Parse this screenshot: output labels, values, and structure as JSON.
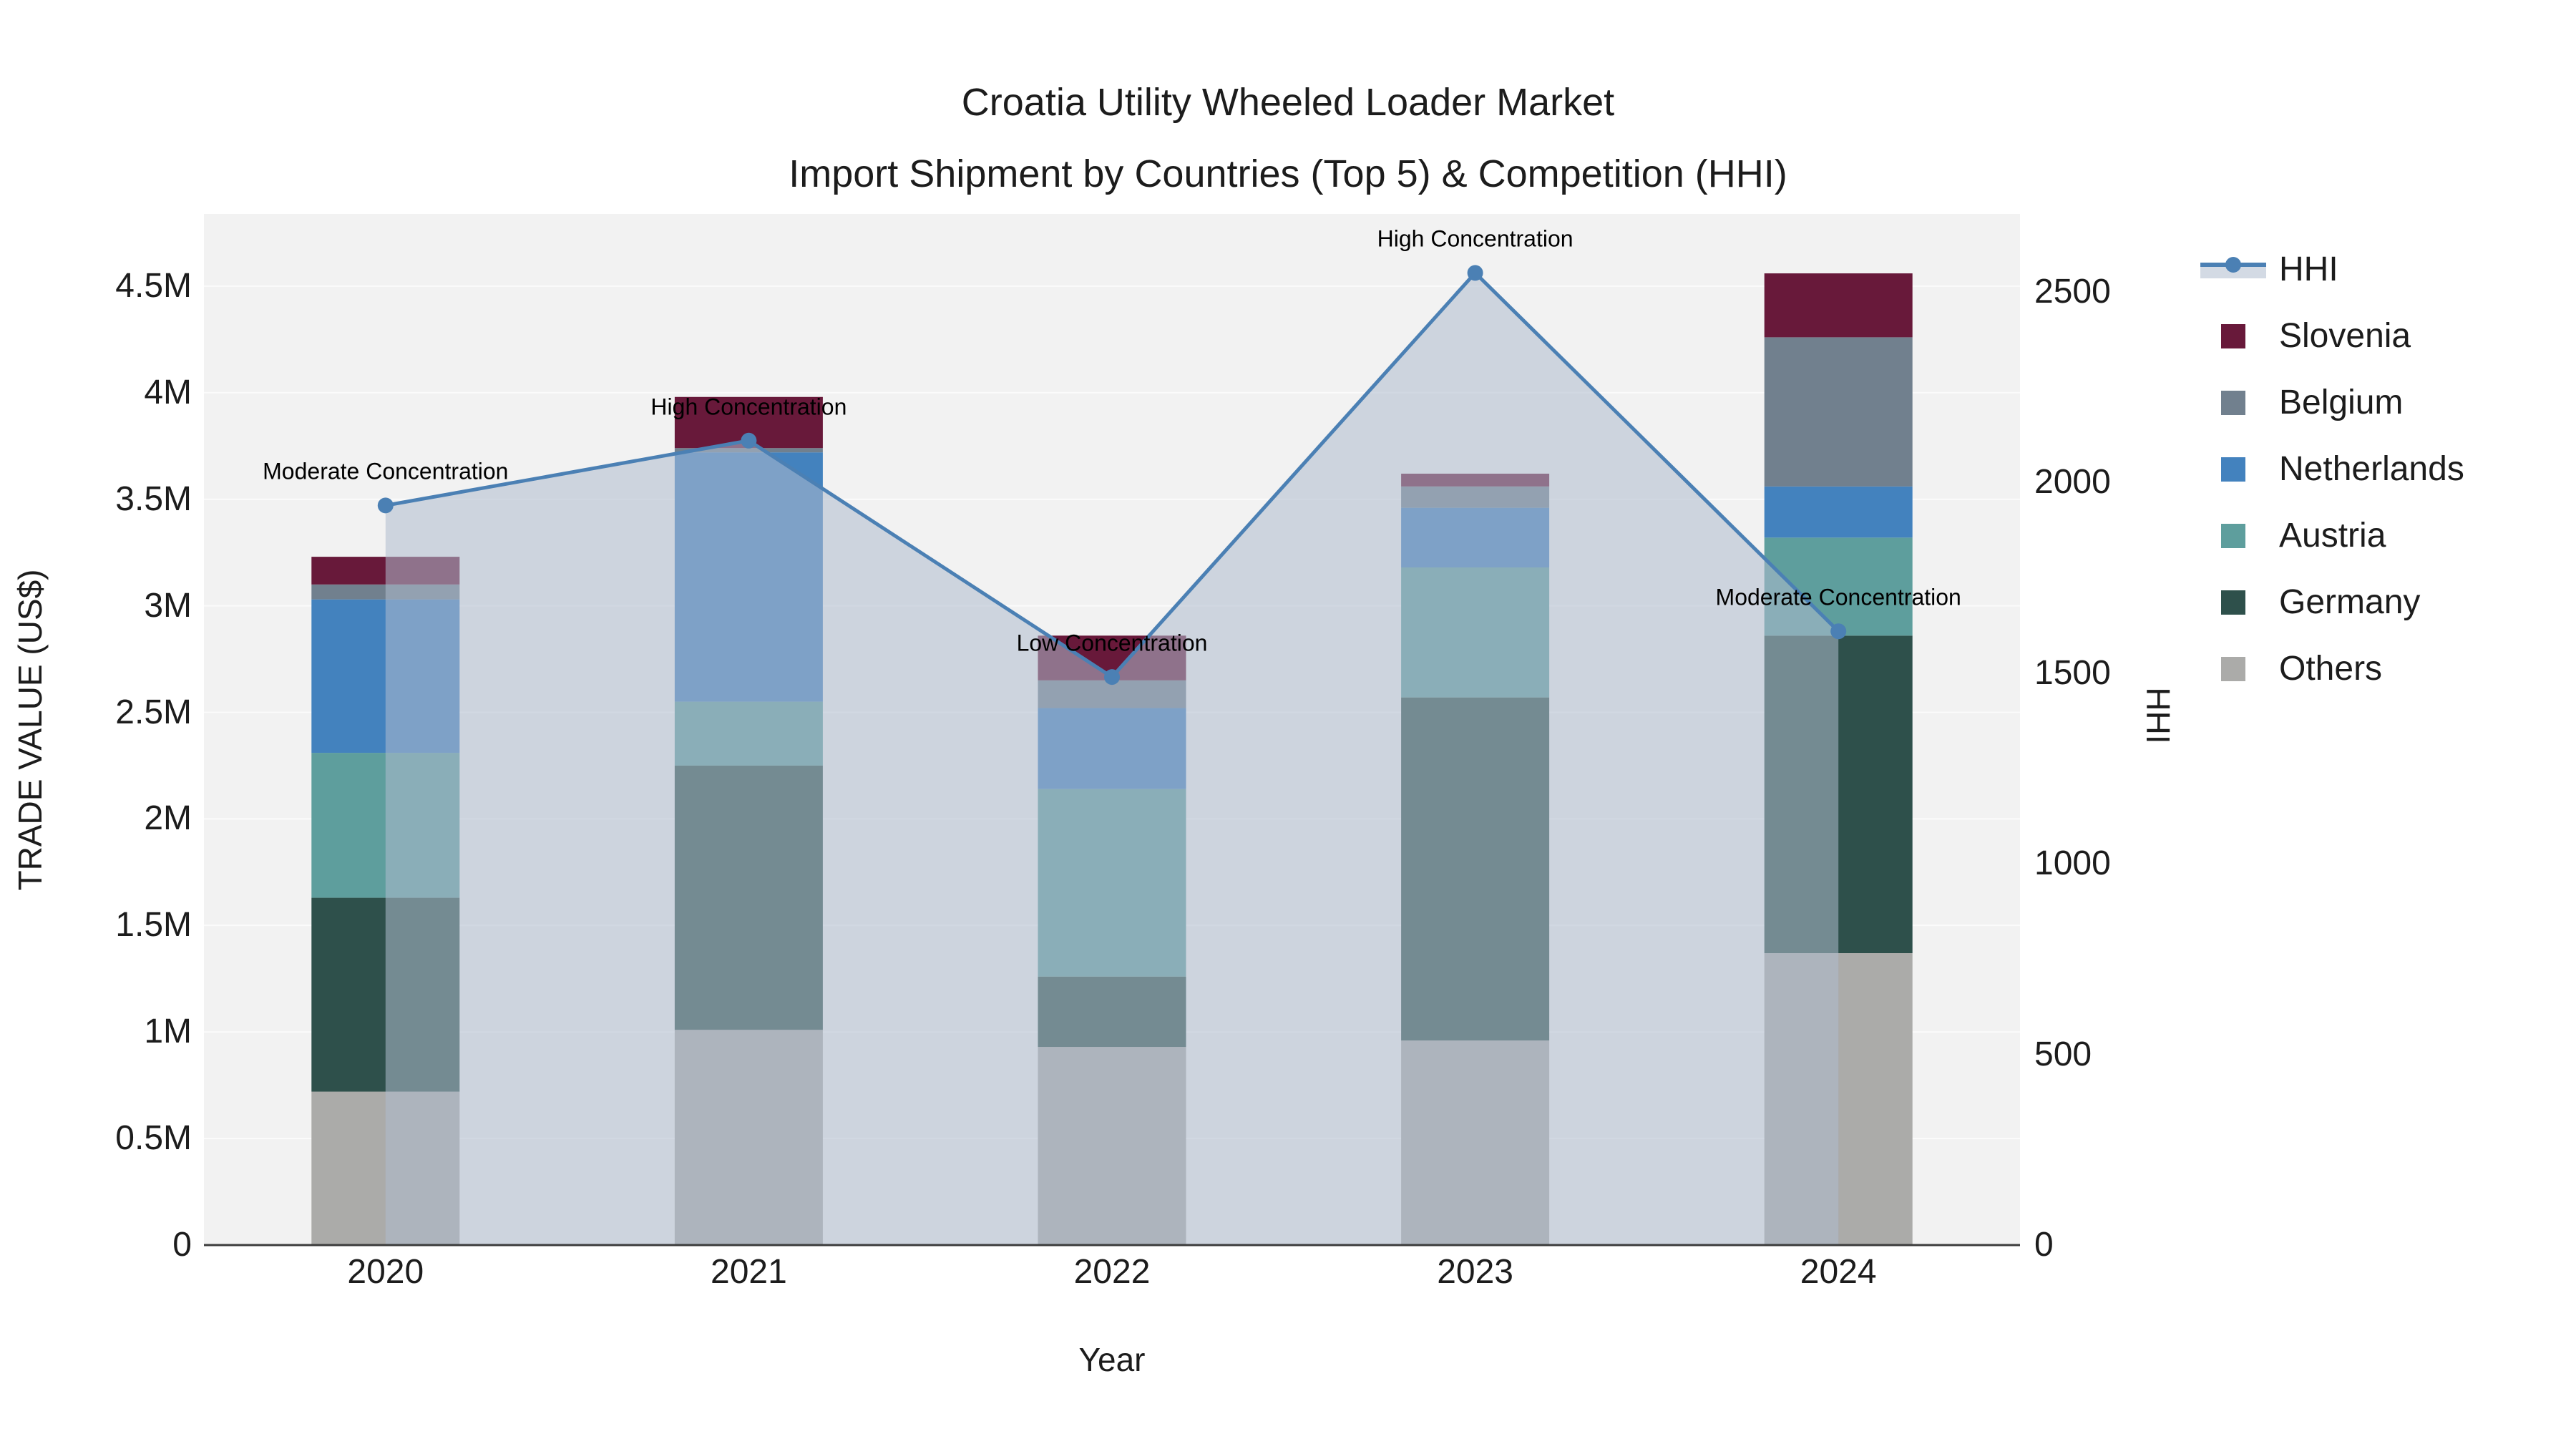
{
  "title": {
    "line1": "Croatia Utility Wheeled Loader Market",
    "line2": "Import Shipment by Countries (Top 5) & Competition (HHI)"
  },
  "axes": {
    "left": {
      "title": "TRADE VALUE (US$)",
      "tick_values": [
        0,
        0.5,
        1,
        1.5,
        2,
        2.5,
        3,
        3.5,
        4,
        4.5
      ],
      "tick_labels": [
        "0",
        "0.5M",
        "1M",
        "1.5M",
        "2M",
        "2.5M",
        "3M",
        "3.5M",
        "4M",
        "4.5M"
      ],
      "range": [
        0,
        4.84
      ]
    },
    "right": {
      "title": "HHI",
      "tick_values": [
        0,
        500,
        1000,
        1500,
        2000,
        2500
      ],
      "tick_labels": [
        "0",
        "500",
        "1000",
        "1500",
        "2000",
        "2500"
      ],
      "range": [
        0,
        2705
      ]
    },
    "x": {
      "title": "Year",
      "categories": [
        "2020",
        "2021",
        "2022",
        "2023",
        "2024"
      ]
    }
  },
  "legend": {
    "items": [
      {
        "label": "HHI",
        "type": "line"
      },
      {
        "label": "Slovenia",
        "type": "square",
        "color_key": "slovenia"
      },
      {
        "label": "Belgium",
        "type": "square",
        "color_key": "belgium"
      },
      {
        "label": "Netherlands",
        "type": "square",
        "color_key": "netherlands"
      },
      {
        "label": "Austria",
        "type": "square",
        "color_key": "austria"
      },
      {
        "label": "Germany",
        "type": "square",
        "color_key": "germany"
      },
      {
        "label": "Others",
        "type": "square",
        "color_key": "others"
      }
    ]
  },
  "colors": {
    "slovenia": "#68193A",
    "belgium": "#71808E",
    "netherlands": "#4382BE",
    "austria": "#5E9E9D",
    "germany": "#2E504B",
    "others": "#ABABA9",
    "hhi_line": "#4B80B4",
    "hhi_area": "rgba(174,188,205,0.55)",
    "plot_bg": "#F2F2F2",
    "grid": "#FBFBFB",
    "axis_line": "#3C3C3C"
  },
  "chart_data": {
    "type": "combo: stacked bar (left axis, trade value US$ millions) + line (right axis, HHI)",
    "categories": [
      "2020",
      "2021",
      "2022",
      "2023",
      "2024"
    ],
    "bar_unit": "million US$",
    "bar_stack_order_bottom_to_top": [
      "Others",
      "Germany",
      "Austria",
      "Netherlands",
      "Belgium",
      "Slovenia"
    ],
    "series": [
      {
        "name": "Others",
        "values": [
          0.72,
          1.01,
          0.93,
          0.96,
          1.37
        ]
      },
      {
        "name": "Germany",
        "values": [
          0.91,
          1.24,
          0.33,
          1.61,
          1.49
        ]
      },
      {
        "name": "Austria",
        "values": [
          0.68,
          0.3,
          0.88,
          0.61,
          0.46
        ]
      },
      {
        "name": "Netherlands",
        "values": [
          0.72,
          1.17,
          0.38,
          0.28,
          0.24
        ]
      },
      {
        "name": "Belgium",
        "values": [
          0.07,
          0.02,
          0.13,
          0.1,
          0.7
        ]
      },
      {
        "name": "Slovenia",
        "values": [
          0.13,
          0.24,
          0.21,
          0.06,
          0.3
        ]
      }
    ],
    "bar_totals": [
      3.23,
      3.98,
      2.86,
      3.62,
      4.56
    ],
    "line_series": {
      "name": "HHI",
      "axis": "right",
      "values": [
        1940,
        2110,
        1490,
        2550,
        1610
      ],
      "area_fill": true
    },
    "annotations": [
      {
        "x": "2020",
        "text": "Moderate Concentration"
      },
      {
        "x": "2021",
        "text": "High Concentration"
      },
      {
        "x": "2022",
        "text": "Low Concentration"
      },
      {
        "x": "2023",
        "text": "High Concentration"
      },
      {
        "x": "2024",
        "text": "Moderate Concentration"
      }
    ],
    "layout_hints": {
      "grid": "horizontal only",
      "legend_position": "right",
      "plot_area_gray": true
    }
  }
}
